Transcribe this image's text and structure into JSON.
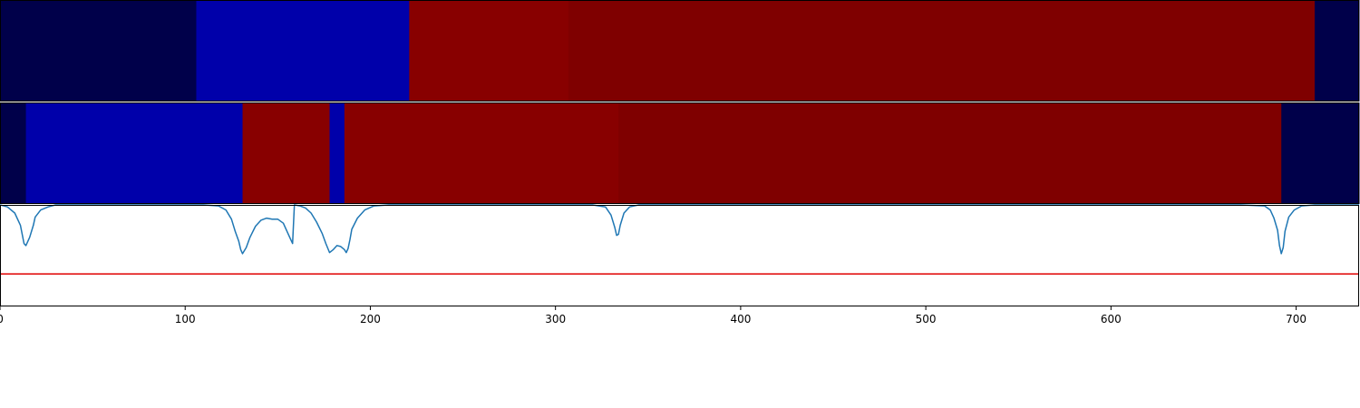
{
  "chart_data": {
    "type": "heatmap",
    "x_axis": {
      "range": [
        0,
        734
      ],
      "ticks": [
        0,
        100,
        200,
        300,
        400,
        500,
        600,
        700
      ],
      "tick_labels": [
        "0",
        "100",
        "200",
        "300",
        "400",
        "500",
        "600",
        "700"
      ]
    },
    "rows": [
      {
        "segments": [
          {
            "start": 0,
            "end": 106,
            "color": "#00004a"
          },
          {
            "start": 106,
            "end": 221,
            "color": "#0000aa"
          },
          {
            "start": 221,
            "end": 307,
            "color": "#880000"
          },
          {
            "start": 307,
            "end": 710,
            "color": "#7f0000"
          },
          {
            "start": 710,
            "end": 734,
            "color": "#00004a"
          }
        ]
      },
      {
        "segments": [
          {
            "start": 0,
            "end": 14,
            "color": "#00004a"
          },
          {
            "start": 14,
            "end": 131,
            "color": "#0000aa"
          },
          {
            "start": 131,
            "end": 178,
            "color": "#880000"
          },
          {
            "start": 178,
            "end": 186,
            "color": "#0000aa"
          },
          {
            "start": 186,
            "end": 334,
            "color": "#880000"
          },
          {
            "start": 334,
            "end": 692,
            "color": "#7f0000"
          },
          {
            "start": 692,
            "end": 734,
            "color": "#00004a"
          }
        ]
      }
    ],
    "line_plot": {
      "ylim": [
        0,
        1
      ],
      "line_color": "#1f77b4",
      "threshold": 0.32,
      "threshold_color": "#e00000",
      "points": [
        [
          0,
          1.0
        ],
        [
          4,
          0.98
        ],
        [
          8,
          0.92
        ],
        [
          11,
          0.8
        ],
        [
          13,
          0.62
        ],
        [
          14,
          0.6
        ],
        [
          16,
          0.68
        ],
        [
          18,
          0.8
        ],
        [
          19,
          0.88
        ],
        [
          22,
          0.95
        ],
        [
          26,
          0.98
        ],
        [
          30,
          1.0
        ],
        [
          60,
          1.0
        ],
        [
          110,
          1.0
        ],
        [
          118,
          0.99
        ],
        [
          122,
          0.95
        ],
        [
          125,
          0.86
        ],
        [
          127,
          0.74
        ],
        [
          129,
          0.64
        ],
        [
          130,
          0.56
        ],
        [
          131,
          0.52
        ],
        [
          133,
          0.58
        ],
        [
          135,
          0.68
        ],
        [
          138,
          0.79
        ],
        [
          141,
          0.85
        ],
        [
          144,
          0.87
        ],
        [
          147,
          0.86
        ],
        [
          150,
          0.86
        ],
        [
          153,
          0.82
        ],
        [
          155,
          0.74
        ],
        [
          157,
          0.66
        ],
        [
          158,
          0.62
        ],
        [
          159,
          1.0
        ],
        [
          162,
          0.99
        ],
        [
          165,
          0.97
        ],
        [
          168,
          0.92
        ],
        [
          171,
          0.83
        ],
        [
          174,
          0.72
        ],
        [
          176,
          0.62
        ],
        [
          178,
          0.53
        ],
        [
          180,
          0.56
        ],
        [
          182,
          0.6
        ],
        [
          184,
          0.59
        ],
        [
          186,
          0.56
        ],
        [
          187,
          0.53
        ],
        [
          188,
          0.57
        ],
        [
          189,
          0.66
        ],
        [
          190,
          0.76
        ],
        [
          193,
          0.87
        ],
        [
          197,
          0.95
        ],
        [
          202,
          0.99
        ],
        [
          210,
          1.0
        ],
        [
          260,
          1.0
        ],
        [
          320,
          1.0
        ],
        [
          327,
          0.98
        ],
        [
          330,
          0.9
        ],
        [
          332,
          0.78
        ],
        [
          333,
          0.7
        ],
        [
          334,
          0.71
        ],
        [
          335,
          0.8
        ],
        [
          337,
          0.92
        ],
        [
          340,
          0.98
        ],
        [
          345,
          1.0
        ],
        [
          500,
          1.0
        ],
        [
          670,
          1.0
        ],
        [
          683,
          0.99
        ],
        [
          686,
          0.95
        ],
        [
          688,
          0.87
        ],
        [
          690,
          0.75
        ],
        [
          691,
          0.6
        ],
        [
          692,
          0.52
        ],
        [
          693,
          0.58
        ],
        [
          694,
          0.74
        ],
        [
          696,
          0.88
        ],
        [
          699,
          0.95
        ],
        [
          703,
          0.99
        ],
        [
          710,
          1.0
        ],
        [
          734,
          1.0
        ]
      ]
    }
  }
}
